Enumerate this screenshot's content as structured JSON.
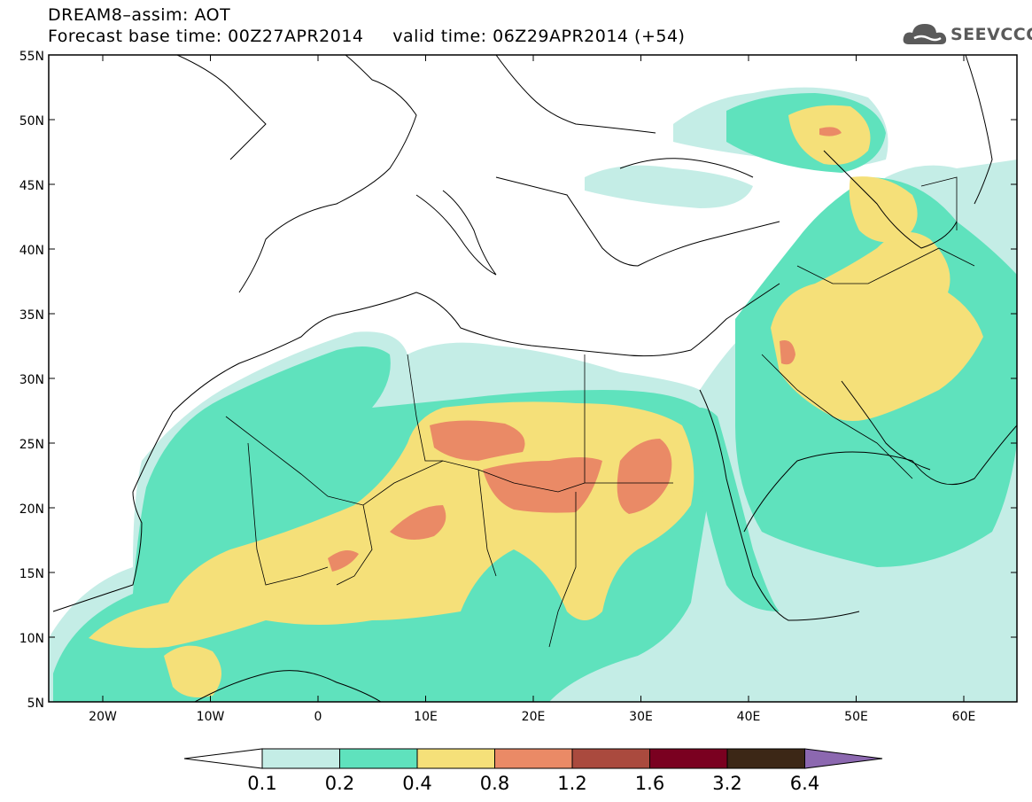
{
  "header": {
    "title_line1": "DREAM8–assim: AOT",
    "title_line2": "Forecast base time: 00Z27APR2014     valid time: 06Z29APR2014 (+54)"
  },
  "logo": {
    "text": "SEEVCCC",
    "icon": "cloud-icon"
  },
  "map": {
    "lat_labels": [
      "55N",
      "50N",
      "45N",
      "40N",
      "35N",
      "30N",
      "25N",
      "20N",
      "15N",
      "10N",
      "5N"
    ],
    "lon_labels": [
      "20W",
      "10W",
      "0",
      "10E",
      "20E",
      "30E",
      "40E",
      "50E",
      "60E"
    ]
  },
  "colorbar": {
    "labels": [
      "0.1",
      "0.2",
      "0.4",
      "0.8",
      "1.2",
      "1.6",
      "3.2",
      "6.4"
    ],
    "colors": {
      "below": "#ffffff",
      "c1": "#c4ede6",
      "c2": "#5fe2bd",
      "c3": "#f5e079",
      "c4": "#ea8a66",
      "c5": "#aa4a3e",
      "c6": "#7a0020",
      "c7": "#3c2716",
      "above": "#8c68b0"
    }
  }
}
